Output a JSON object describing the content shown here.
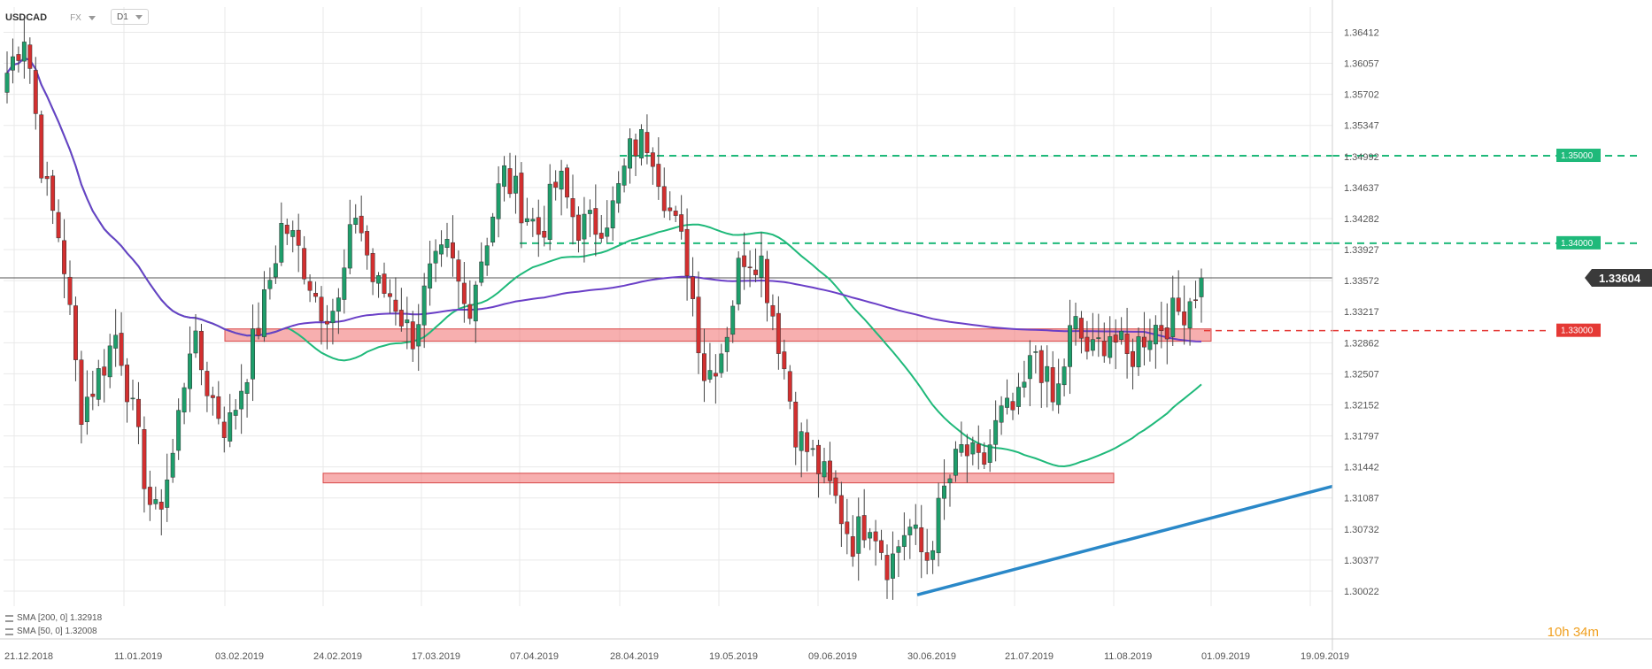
{
  "header": {
    "symbol": "USDCAD",
    "asset_class": "FX",
    "timeframe": "D1"
  },
  "legend": [
    {
      "label": "SMA [200, 0] 1.32918",
      "color": "#6a3fc7"
    },
    {
      "label": "SMA [50, 0] 1.32008",
      "color": "#1fb97a"
    }
  ],
  "timer": {
    "hours": "10",
    "h_unit": "h",
    "minutes": "34",
    "m_unit": "m"
  },
  "colors": {
    "bull": "#1e9e6b",
    "bear": "#d32f2f",
    "grid": "#e9e9e9",
    "sma200": "#6a3fc7",
    "sma50": "#1fb97a",
    "trend": "#2a88c8",
    "resistance": "#1fb97a",
    "support_zone": "#f27a7a",
    "price_line": "#555555"
  },
  "chart_data": {
    "type": "candlestick",
    "symbol": "USDCAD",
    "timeframe": "D1",
    "ylim": [
      1.2985,
      1.367
    ],
    "y_ticks": [
      1.36412,
      1.36057,
      1.35702,
      1.35347,
      1.34992,
      1.34637,
      1.34282,
      1.33927,
      1.33572,
      1.33217,
      1.32862,
      1.32507,
      1.32152,
      1.31797,
      1.31442,
      1.31087,
      1.30732,
      1.30377,
      1.30022
    ],
    "x_ticks": [
      "21.12.2018",
      "11.01.2019",
      "03.02.2019",
      "24.02.2019",
      "17.03.2019",
      "07.04.2019",
      "28.04.2019",
      "19.05.2019",
      "09.06.2019",
      "30.06.2019",
      "21.07.2019",
      "11.08.2019",
      "01.09.2019",
      "19.09.2019"
    ],
    "current_price": 1.33604,
    "price_labels": [
      {
        "value": 1.35,
        "label": "1.35000",
        "color": "#1fb97a"
      },
      {
        "value": 1.34,
        "label": "1.34000",
        "color": "#1fb97a"
      },
      {
        "value": 1.33,
        "label": "1.33000",
        "color": "#e53935"
      }
    ],
    "resistance_levels": [
      {
        "value": 1.35,
        "from": "28.04.2019"
      },
      {
        "value": 1.34,
        "from": "07.04.2019"
      }
    ],
    "support_zones": [
      {
        "low": 1.3288,
        "high": 1.3302,
        "from": "03.02.2019",
        "to": "01.09.2019"
      },
      {
        "low": 1.3126,
        "high": 1.3137,
        "from": "24.02.2019",
        "to": "11.08.2019"
      }
    ],
    "trendline": {
      "from": {
        "date": "30.06.2019",
        "value": 1.2998
      },
      "to": {
        "date": "19.09.2019",
        "value": 1.3122
      }
    },
    "key_points": [
      1.3595,
      1.3645,
      1.347,
      1.3395,
      1.321,
      1.325,
      1.33,
      1.3185,
      1.308,
      1.3155,
      1.3295,
      1.323,
      1.3185,
      1.3255,
      1.333,
      1.3425,
      1.3385,
      1.333,
      1.3325,
      1.344,
      1.335,
      1.334,
      1.329,
      1.336,
      1.339,
      1.332,
      1.34,
      1.348,
      1.3445,
      1.341,
      1.3475,
      1.342,
      1.342,
      1.344,
      1.351,
      1.352,
      1.344,
      1.338,
      1.3245,
      1.3285,
      1.339,
      1.3385,
      1.329,
      1.318,
      1.315,
      1.311,
      1.306,
      1.309,
      1.303,
      1.308,
      1.3035,
      1.3115,
      1.3165,
      1.314,
      1.32,
      1.321,
      1.328,
      1.321,
      1.331,
      1.327,
      1.33,
      1.3265,
      1.33,
      1.331,
      1.3325,
      1.336
    ]
  }
}
